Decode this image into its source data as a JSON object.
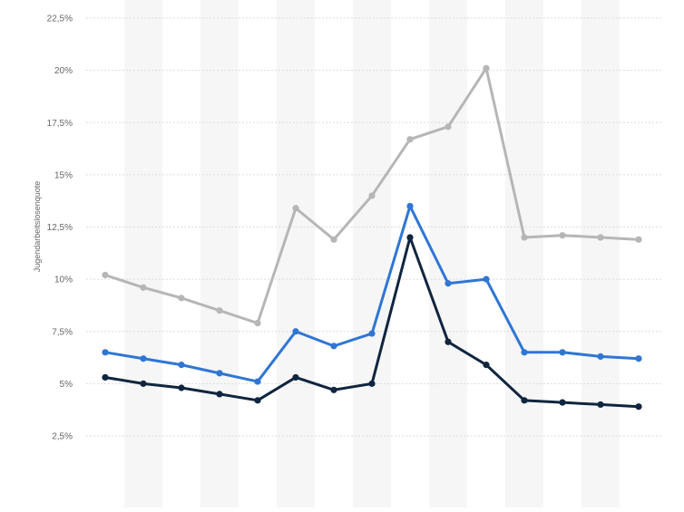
{
  "chart_data": {
    "type": "line",
    "ylabel": "Jugendarbeitslosenquote",
    "ylim": [
      2.5,
      22.5
    ],
    "yticks": [
      2.5,
      5,
      7.5,
      10,
      12.5,
      15,
      17.5,
      20,
      22.5
    ],
    "ytick_labels": [
      "2,5%",
      "5%",
      "7,5%",
      "10%",
      "12,5%",
      "15%",
      "17,5%",
      "20%",
      "22,5%"
    ],
    "x": [
      1,
      2,
      3,
      4,
      5,
      6,
      7,
      8,
      9,
      10,
      11,
      12,
      13,
      14,
      15
    ],
    "xtick_labels": [],
    "grid": "horizontal",
    "legend": "none",
    "series": [
      {
        "color": "#b6b6b6",
        "values": [
          10.2,
          9.6,
          9.1,
          8.5,
          7.9,
          13.4,
          11.9,
          14.0,
          16.7,
          17.3,
          20.1,
          12.0,
          12.1,
          12.0,
          11.9
        ]
      },
      {
        "color": "#2f76d4",
        "values": [
          6.5,
          6.2,
          5.9,
          5.5,
          5.1,
          7.5,
          6.8,
          7.4,
          13.5,
          9.8,
          10.0,
          6.5,
          6.5,
          6.3,
          6.2
        ]
      },
      {
        "color": "#10253f",
        "values": [
          5.3,
          5.0,
          4.8,
          4.5,
          4.2,
          5.3,
          4.7,
          5.0,
          12.0,
          7.0,
          5.9,
          4.2,
          4.1,
          4.0,
          3.9
        ]
      }
    ]
  }
}
